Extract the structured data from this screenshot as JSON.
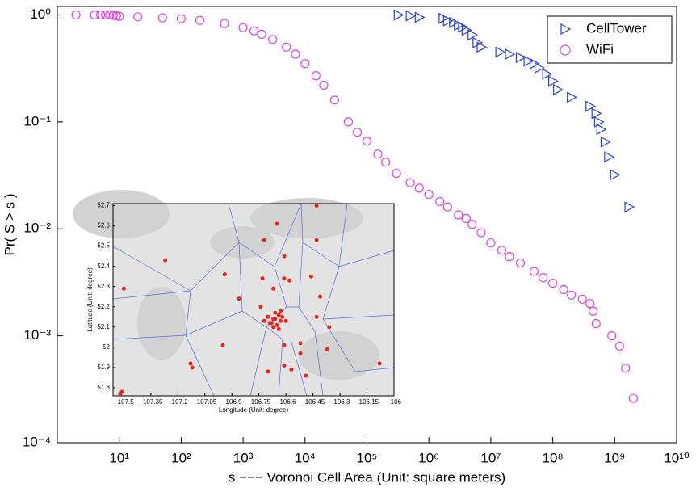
{
  "chart_data": [
    {
      "type": "scatter",
      "xlabel": "s −−− Voronoi Cell Area (Unit: square meters)",
      "ylabel": "Pr( S > s )",
      "xscale": "log",
      "yscale": "log",
      "xlim": [
        1,
        10000000000
      ],
      "ylim": [
        0.0001,
        1.2
      ],
      "xticks": [
        {
          "value": 10,
          "label": "10¹"
        },
        {
          "value": 100,
          "label": "10²"
        },
        {
          "value": 1000,
          "label": "10³"
        },
        {
          "value": 10000,
          "label": "10⁴"
        },
        {
          "value": 100000,
          "label": "10⁵"
        },
        {
          "value": 1000000,
          "label": "10⁶"
        },
        {
          "value": 10000000,
          "label": "10⁷"
        },
        {
          "value": 100000000,
          "label": "10⁸"
        },
        {
          "value": 1000000000,
          "label": "10⁹"
        },
        {
          "value": 10000000000,
          "label": "10¹⁰"
        }
      ],
      "yticks": [
        {
          "value": 0.0001,
          "label": "10⁻⁴"
        },
        {
          "value": 0.001,
          "label": "10⁻³"
        },
        {
          "value": 0.01,
          "label": "10⁻²"
        },
        {
          "value": 0.1,
          "label": "10⁻¹"
        },
        {
          "value": 1,
          "label": "10⁰"
        }
      ],
      "legend": "upper right",
      "series": [
        {
          "name": "CellTower",
          "color": "#2b3fd6",
          "marker": "triangle",
          "x": [
            320000,
            500000,
            700000,
            1700000,
            2000000,
            2500000,
            3000000,
            3500000,
            4000000,
            5000000,
            6000000,
            7000000,
            14000000,
            20000000,
            30000000,
            40000000,
            50000000,
            60000000,
            80000000,
            100000000,
            120000000,
            200000000,
            400000000,
            500000000,
            550000000,
            600000000,
            700000000,
            800000000,
            1000000000,
            1700000000
          ],
          "values": [
            1,
            0.98,
            0.95,
            0.93,
            0.88,
            0.85,
            0.8,
            0.77,
            0.72,
            0.65,
            0.55,
            0.5,
            0.45,
            0.43,
            0.4,
            0.37,
            0.35,
            0.32,
            0.28,
            0.24,
            0.2,
            0.17,
            0.14,
            0.12,
            0.1,
            0.085,
            0.065,
            0.047,
            0.032,
            0.016
          ]
        },
        {
          "name": "WiFi",
          "color": "#e040e0",
          "marker": "circle",
          "x": [
            2,
            4,
            5,
            6,
            7,
            8,
            9,
            10,
            20,
            50,
            100,
            200,
            500,
            1000,
            1500,
            2000,
            3000,
            5000,
            7000,
            10000,
            15000,
            20000,
            30000,
            50000,
            70000,
            100000,
            150000,
            200000,
            300000,
            500000,
            700000,
            1000000,
            1500000,
            2000000,
            3000000,
            4000000,
            5000000,
            7000000,
            10000000,
            15000000,
            20000000,
            30000000,
            50000000,
            70000000,
            100000000,
            150000000,
            200000000,
            300000000,
            400000000,
            450000000,
            500000000,
            900000000,
            1200000000,
            1500000000,
            2000000000
          ],
          "values": [
            1,
            1,
            1,
            1,
            1,
            0.99,
            0.98,
            0.97,
            0.96,
            0.94,
            0.92,
            0.89,
            0.83,
            0.76,
            0.71,
            0.66,
            0.59,
            0.5,
            0.43,
            0.35,
            0.27,
            0.22,
            0.16,
            0.1,
            0.08,
            0.066,
            0.05,
            0.042,
            0.033,
            0.027,
            0.024,
            0.021,
            0.018,
            0.016,
            0.0135,
            0.0125,
            0.011,
            0.0092,
            0.0074,
            0.0063,
            0.0055,
            0.0048,
            0.004,
            0.0035,
            0.0031,
            0.0027,
            0.0024,
            0.0022,
            0.002,
            0.0017,
            0.0013,
            0.001,
            0.0008,
            0.0005,
            0.00026
          ]
        }
      ]
    },
    {
      "type": "scatter",
      "xlabel": "Longitude (Unit: degree)",
      "ylabel": "Latitude (Unit: degree)",
      "xlim": [
        -107.56,
        -106
      ],
      "ylim": [
        51.76,
        52.71
      ],
      "xticks": [
        {
          "value": -107.5,
          "label": "−107.5"
        },
        {
          "value": -107.35,
          "label": "−107.35"
        },
        {
          "value": -107.2,
          "label": "−107.2"
        },
        {
          "value": -107.05,
          "label": "−107.05"
        },
        {
          "value": -106.9,
          "label": "−106.9"
        },
        {
          "value": -106.75,
          "label": "−106.75"
        },
        {
          "value": -106.6,
          "label": "−106.6"
        },
        {
          "value": -106.45,
          "label": "−106.45"
        },
        {
          "value": -106.3,
          "label": "−106.3"
        },
        {
          "value": -106.15,
          "label": "−106.15"
        },
        {
          "value": -106,
          "label": "−106"
        }
      ],
      "yticks": [
        51.8,
        51.9,
        52,
        52.1,
        52.2,
        52.3,
        52.4,
        52.5,
        52.6,
        52.7
      ],
      "series": [
        {
          "color": "#e8281e",
          "marker": "dot",
          "x": [
            -107.5,
            -107.27,
            -107.52,
            -107.51,
            -107.13,
            -107.12,
            -106.94,
            -106.95,
            -106.86,
            -106.72,
            -106.65,
            -106.43,
            -106.43,
            -106.61,
            -106.73,
            -106.61,
            -106.58,
            -106.67,
            -106.46,
            -106.41,
            -106.74,
            -106.43,
            -106.36,
            -106.52,
            -106.61,
            -106.52,
            -106.49,
            -106.57,
            -106.7,
            -106.61,
            -106.37,
            -106.08,
            -106.66,
            -106.68,
            -106.64,
            -106.63,
            -106.7,
            -106.67,
            -106.65,
            -106.62,
            -106.69,
            -106.66,
            -106.6,
            -106.64,
            -106.72,
            -106.67,
            -106.63
          ],
          "values": [
            52.29,
            52.43,
            51.77,
            51.78,
            51.92,
            51.9,
            52.36,
            52.01,
            52.24,
            52.53,
            52.61,
            52.7,
            52.53,
            52.45,
            52.34,
            52.34,
            52.33,
            52.29,
            52.35,
            52.25,
            52.2,
            52.15,
            52.1,
            52.02,
            52.01,
            51.97,
            51.86,
            51.89,
            51.88,
            51.91,
            51.99,
            51.92,
            52.14,
            52.12,
            52.16,
            52.13,
            52.15,
            52.1,
            52.11,
            52.15,
            52.12,
            52.17,
            52.13,
            52.09,
            52.13,
            52.14,
            52.18
          ]
        }
      ]
    }
  ]
}
